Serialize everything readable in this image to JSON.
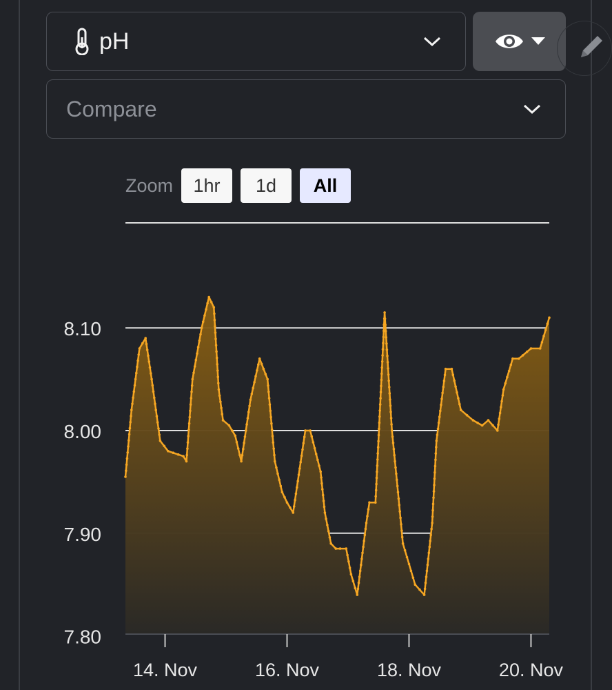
{
  "metric_select": {
    "icon": "thermometer-icon",
    "label": "pH"
  },
  "compare_select": {
    "placeholder": "Compare"
  },
  "visibility_button": {
    "icon": "eye-icon"
  },
  "edit_button": {
    "icon": "pencil-icon"
  },
  "zoom": {
    "label": "Zoom",
    "options": [
      "1hr",
      "1d",
      "All"
    ],
    "selected": "All"
  },
  "colors": {
    "background": "#212328",
    "series": "#f5a623",
    "grid": "#e0e0e0",
    "button_selected": "#e6e9ff"
  },
  "chart_data": {
    "type": "area",
    "title": "",
    "xlabel": "",
    "ylabel": "",
    "ylim": [
      7.8,
      8.2
    ],
    "y_ticks": [
      7.8,
      7.9,
      8.0,
      8.1
    ],
    "y_tick_labels": [
      "7.80",
      "7.90",
      "8.00",
      "8.10"
    ],
    "x_ticks": [
      14,
      16,
      18,
      20
    ],
    "x_tick_labels": [
      "14. Nov",
      "16. Nov",
      "18. Nov",
      "20. Nov"
    ],
    "xlim": [
      13.35,
      20.3
    ],
    "grid": true,
    "series": [
      {
        "x": [
          13.35,
          13.45,
          13.58,
          13.68,
          13.78,
          13.92,
          14.05,
          14.3,
          14.35,
          14.45,
          14.6,
          14.72,
          14.8,
          14.88,
          14.95,
          15.05,
          15.15,
          15.25,
          15.4,
          15.55,
          15.68,
          15.8,
          15.92,
          16.0,
          16.1,
          16.3,
          16.38,
          16.55,
          16.62,
          16.72,
          16.8,
          16.87,
          16.97,
          17.05,
          17.15,
          17.3,
          17.35,
          17.45,
          17.6,
          17.72,
          17.82,
          17.9,
          18.0,
          18.1,
          18.25,
          18.38,
          18.45,
          18.6,
          18.7,
          18.85,
          18.95,
          19.05,
          19.2,
          19.3,
          19.45,
          19.55,
          19.7,
          19.8,
          20.0,
          20.15,
          20.3
        ],
        "y": [
          7.955,
          8.02,
          8.08,
          8.09,
          8.05,
          7.99,
          7.98,
          7.975,
          7.97,
          8.05,
          8.1,
          8.13,
          8.12,
          8.04,
          8.01,
          8.005,
          7.995,
          7.97,
          8.03,
          8.07,
          8.05,
          7.97,
          7.94,
          7.93,
          7.92,
          8.0,
          8.0,
          7.96,
          7.92,
          7.89,
          7.885,
          7.885,
          7.885,
          7.86,
          7.84,
          7.91,
          7.93,
          7.93,
          8.115,
          8.0,
          7.94,
          7.89,
          7.87,
          7.85,
          7.84,
          7.91,
          7.99,
          8.06,
          8.06,
          8.02,
          8.015,
          8.01,
          8.005,
          8.01,
          8.0,
          8.04,
          8.07,
          8.07,
          8.08,
          8.08,
          8.11
        ]
      }
    ]
  }
}
